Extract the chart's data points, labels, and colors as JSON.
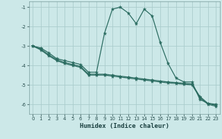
{
  "xlabel": "Humidex (Indice chaleur)",
  "bg_color": "#cce8e8",
  "grid_color": "#aacccc",
  "line_color": "#2a6b60",
  "xlim": [
    -0.5,
    23.5
  ],
  "ylim": [
    -6.5,
    -0.7
  ],
  "yticks": [
    -6,
    -5,
    -4,
    -3,
    -2,
    -1
  ],
  "xticks": [
    0,
    1,
    2,
    3,
    4,
    5,
    6,
    7,
    8,
    9,
    10,
    11,
    12,
    13,
    14,
    15,
    16,
    17,
    18,
    19,
    20,
    21,
    22,
    23
  ],
  "line1_x": [
    0,
    1,
    2,
    3,
    4,
    5,
    6,
    7,
    8,
    9,
    10,
    11,
    12,
    13,
    14,
    15,
    16,
    17,
    18,
    19,
    20,
    21,
    22,
    23
  ],
  "line1_y": [
    -3.0,
    -3.1,
    -3.35,
    -3.65,
    -3.75,
    -3.85,
    -3.95,
    -4.35,
    -4.35,
    -2.35,
    -1.1,
    -1.0,
    -1.3,
    -1.85,
    -1.1,
    -1.45,
    -2.8,
    -3.9,
    -4.65,
    -4.85,
    -4.85,
    -5.75,
    -5.95,
    -6.0
  ],
  "line2_x": [
    0,
    1,
    2,
    3,
    4,
    5,
    6,
    7,
    8,
    9,
    10,
    11,
    12,
    13,
    14,
    15,
    16,
    17,
    18,
    19,
    20,
    21,
    22,
    23
  ],
  "line2_y": [
    -3.0,
    -3.15,
    -3.45,
    -3.7,
    -3.85,
    -3.95,
    -4.05,
    -4.45,
    -4.45,
    -4.45,
    -4.5,
    -4.55,
    -4.6,
    -4.65,
    -4.7,
    -4.75,
    -4.8,
    -4.85,
    -4.88,
    -4.92,
    -4.95,
    -5.6,
    -5.95,
    -6.05
  ],
  "line3_x": [
    0,
    1,
    2,
    3,
    4,
    5,
    6,
    7,
    8,
    9,
    10,
    11,
    12,
    13,
    14,
    15,
    16,
    17,
    18,
    19,
    20,
    21,
    22,
    23
  ],
  "line3_y": [
    -3.0,
    -3.2,
    -3.5,
    -3.75,
    -3.9,
    -4.0,
    -4.1,
    -4.5,
    -4.5,
    -4.5,
    -4.55,
    -4.6,
    -4.65,
    -4.7,
    -4.75,
    -4.8,
    -4.85,
    -4.9,
    -4.93,
    -4.97,
    -5.0,
    -5.65,
    -6.0,
    -6.1
  ]
}
